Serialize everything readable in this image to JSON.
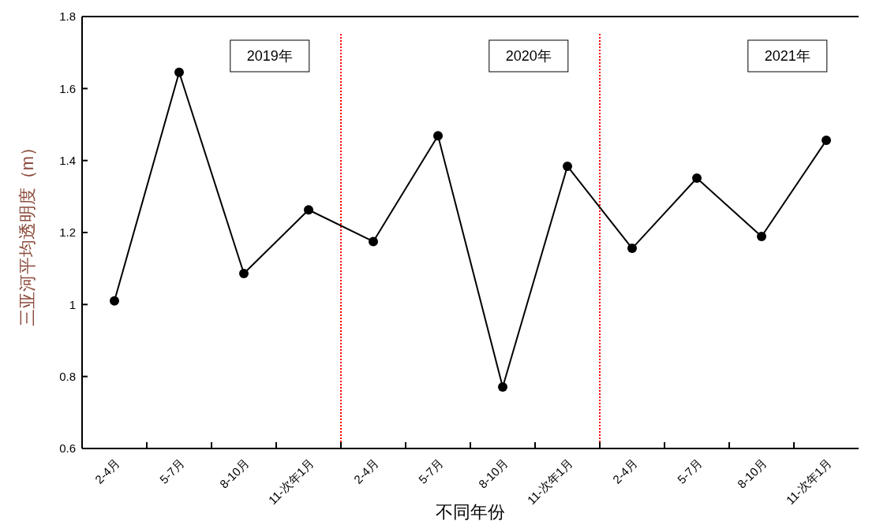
{
  "chart_data": {
    "type": "line",
    "xlabel": "不同年份",
    "ylabel": "三亚河平均透明度（m）",
    "categories": [
      "2-4月",
      "5-7月",
      "8-10月",
      "11-次年1月",
      "2-4月",
      "5-7月",
      "8-10月",
      "11-次年1月",
      "2-4月",
      "5-7月",
      "8-10月",
      "11-次年1月"
    ],
    "series": [
      {
        "color": "#000000",
        "values": [
          1.01,
          1.645,
          1.086,
          1.263,
          1.175,
          1.469,
          0.771,
          1.384,
          1.156,
          1.351,
          1.189,
          1.456
        ]
      }
    ],
    "ylim": [
      0.6,
      1.8
    ],
    "yticks": [
      {
        "value": 0.6,
        "label": "0.6"
      },
      {
        "value": 0.8,
        "label": "0.8"
      },
      1,
      {
        "value": 1.2,
        "label": "1.2"
      },
      {
        "value": 1.4,
        "label": "1.4"
      },
      {
        "value": 1.6,
        "label": "1.6"
      },
      {
        "value": 1.8,
        "label": "1.8"
      }
    ],
    "annotations": [
      "2019年",
      "2020年",
      "2021年"
    ],
    "grid": false,
    "marker": "circle",
    "line_style": "solid"
  }
}
